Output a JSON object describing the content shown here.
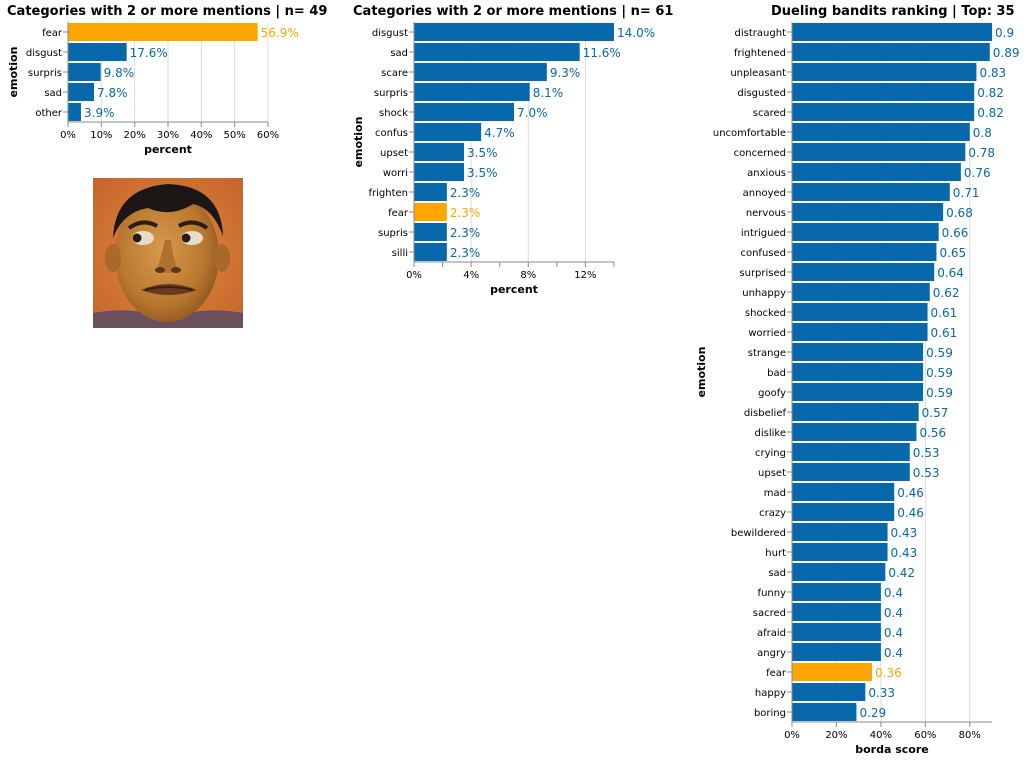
{
  "colors": {
    "bar": "#0868ac",
    "highlight": "#ffa500",
    "grid": "#dddddd",
    "axis": "#888888"
  },
  "chart_data": [
    {
      "type": "bar",
      "orientation": "horizontal",
      "title": "Categories with 2 or more mentions | n= 49",
      "xlabel": "percent",
      "ylabel": "emotion",
      "xlim": [
        0,
        60
      ],
      "x_ticks": [
        "0%",
        "10%",
        "20%",
        "30%",
        "40%",
        "50%",
        "60%"
      ],
      "grid": true,
      "highlight": "fear",
      "categories": [
        "fear",
        "disgust",
        "surpris",
        "sad",
        "other"
      ],
      "values": [
        56.9,
        17.6,
        9.8,
        7.8,
        3.9
      ],
      "labels": [
        "56.9%",
        "17.6%",
        "9.8%",
        "7.8%",
        "3.9%"
      ]
    },
    {
      "type": "bar",
      "orientation": "horizontal",
      "title": "Categories with 2 or more mentions | n= 61",
      "xlabel": "percent",
      "ylabel": "emotion",
      "xlim": [
        0,
        14
      ],
      "x_ticks": [
        "0%",
        "4%",
        "8%",
        "12%"
      ],
      "grid": true,
      "highlight": "fear",
      "categories": [
        "disgust",
        "sad",
        "scare",
        "surpris",
        "shock",
        "confus",
        "upset",
        "worri",
        "frighten",
        "fear",
        "supris",
        "silli"
      ],
      "values": [
        14.0,
        11.6,
        9.3,
        8.1,
        7.0,
        4.7,
        3.5,
        3.5,
        2.3,
        2.3,
        2.3,
        2.3
      ],
      "labels": [
        "14.0%",
        "11.6%",
        "9.3%",
        "8.1%",
        "7.0%",
        "4.7%",
        "3.5%",
        "3.5%",
        "2.3%",
        "2.3%",
        "2.3%",
        "2.3%"
      ]
    },
    {
      "type": "bar",
      "orientation": "horizontal",
      "title": "Dueling bandits ranking | Top: 35",
      "xlabel": "borda score",
      "ylabel": "emotion",
      "xlim": [
        0,
        0.9
      ],
      "x_ticks": [
        "0%",
        "20%",
        "40%",
        "60%",
        "80%"
      ],
      "grid": true,
      "highlight": "fear",
      "categories": [
        "distraught",
        "frightened",
        "unpleasant",
        "disgusted",
        "scared",
        "uncomfortable",
        "concerned",
        "anxious",
        "annoyed",
        "nervous",
        "intrigued",
        "confused",
        "surprised",
        "unhappy",
        "shocked",
        "worried",
        "strange",
        "bad",
        "goofy",
        "disbelief",
        "dislike",
        "crying",
        "upset",
        "mad",
        "crazy",
        "bewildered",
        "hurt",
        "sad",
        "funny",
        "sacred",
        "afraid",
        "angry",
        "fear",
        "happy",
        "boring"
      ],
      "values": [
        0.9,
        0.89,
        0.83,
        0.82,
        0.82,
        0.8,
        0.78,
        0.76,
        0.71,
        0.68,
        0.66,
        0.65,
        0.64,
        0.62,
        0.61,
        0.61,
        0.59,
        0.59,
        0.59,
        0.57,
        0.56,
        0.53,
        0.53,
        0.46,
        0.46,
        0.43,
        0.43,
        0.42,
        0.4,
        0.4,
        0.4,
        0.4,
        0.36,
        0.33,
        0.29
      ],
      "labels": [
        "0.9",
        "0.89",
        "0.83",
        "0.82",
        "0.82",
        "0.8",
        "0.78",
        "0.76",
        "0.71",
        "0.68",
        "0.66",
        "0.65",
        "0.64",
        "0.62",
        "0.61",
        "0.61",
        "0.59",
        "0.59",
        "0.59",
        "0.57",
        "0.56",
        "0.53",
        "0.53",
        "0.46",
        "0.46",
        "0.43",
        "0.43",
        "0.42",
        "0.4",
        "0.4",
        "0.4",
        "0.4",
        "0.36",
        "0.33",
        "0.29"
      ]
    }
  ]
}
